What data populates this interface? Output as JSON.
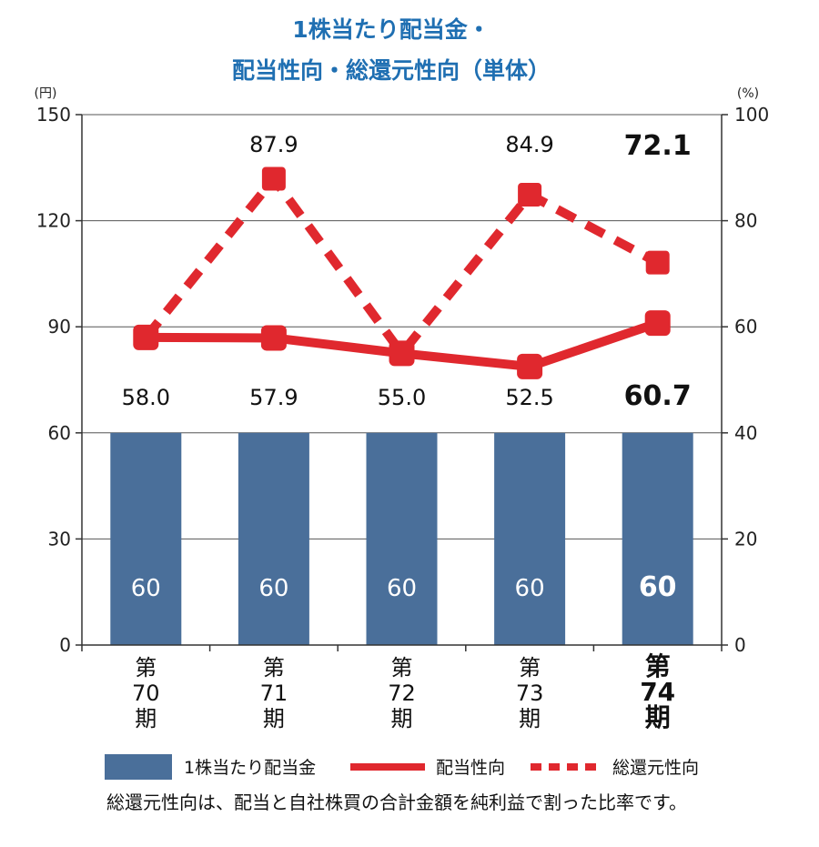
{
  "chart_data": {
    "type": "bar+line",
    "title_lines": [
      "1株当たり配当金・",
      "配当性向・総還元性向（単体）"
    ],
    "categories": [
      [
        "第",
        "70",
        "期"
      ],
      [
        "第",
        "71",
        "期"
      ],
      [
        "第",
        "72",
        "期"
      ],
      [
        "第",
        "73",
        "期"
      ],
      [
        "第",
        "74",
        "期"
      ]
    ],
    "highlight_index": 4,
    "left_axis": {
      "unit": "(円)",
      "ylim": [
        0,
        150
      ],
      "ticks": [
        "0",
        "30",
        "60",
        "90",
        "120",
        "150"
      ]
    },
    "right_axis": {
      "unit": "(%)",
      "ylim": [
        0,
        100
      ],
      "ticks": [
        "0",
        "20",
        "40",
        "60",
        "80",
        "100"
      ]
    },
    "series": [
      {
        "name": "1株当たり配当金",
        "kind": "bar",
        "axis": "left",
        "values": [
          60,
          60,
          60,
          60,
          60
        ],
        "labels": [
          "60",
          "60",
          "60",
          "60",
          "60"
        ],
        "color": "#4a6f9a"
      },
      {
        "name": "配当性向",
        "kind": "line",
        "axis": "right",
        "values": [
          58.0,
          57.9,
          55.0,
          52.5,
          60.7
        ],
        "labels": [
          "58.0",
          "57.9",
          "55.0",
          "52.5",
          "60.7"
        ],
        "color": "#e0282e"
      },
      {
        "name": "総還元性向",
        "kind": "dashed-line",
        "axis": "right",
        "values": [
          58.0,
          87.9,
          55.0,
          84.9,
          72.1
        ],
        "labels": [
          "",
          "87.9",
          "",
          "84.9",
          "72.1"
        ],
        "color": "#e0282e"
      }
    ],
    "grid": true,
    "legend_position": "bottom",
    "note": "総還元性向は、配当と自社株買の合計金額を純利益で割った比率です。"
  }
}
